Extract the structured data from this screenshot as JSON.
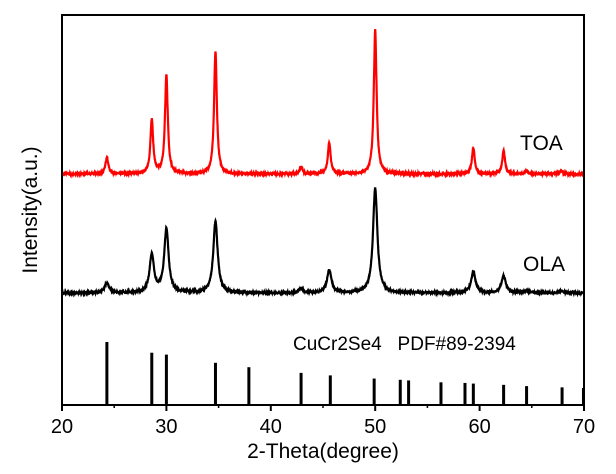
{
  "chart_data": {
    "type": "line",
    "title": "",
    "xlabel": "2-Theta(degree)",
    "ylabel": "Intensity(a.u.)",
    "xlim": [
      20,
      70
    ],
    "ylim": [
      0,
      390
    ],
    "xticks": [
      20,
      30,
      40,
      50,
      60,
      70
    ],
    "grid": false,
    "series": [
      {
        "name": "TOA",
        "color": "#ff0000",
        "baseline": 231,
        "fwhm": 0.32,
        "peaks": [
          [
            24.3,
            17
          ],
          [
            28.6,
            54
          ],
          [
            30.0,
            99
          ],
          [
            34.7,
            122
          ],
          [
            42.9,
            7
          ],
          [
            45.6,
            31
          ],
          [
            50.0,
            144
          ],
          [
            59.4,
            26
          ],
          [
            62.3,
            23
          ],
          [
            64.5,
            3
          ],
          [
            67.8,
            3
          ]
        ]
      },
      {
        "name": "OLA",
        "color": "#000000",
        "baseline": 112,
        "fwhm": 0.5,
        "peaks": [
          [
            24.3,
            10
          ],
          [
            28.6,
            38
          ],
          [
            30.0,
            64
          ],
          [
            34.7,
            72
          ],
          [
            42.9,
            4
          ],
          [
            45.6,
            23
          ],
          [
            50.0,
            105
          ],
          [
            59.4,
            21
          ],
          [
            62.3,
            17
          ],
          [
            64.5,
            2
          ],
          [
            67.8,
            2
          ]
        ]
      }
    ],
    "reference": {
      "label": "CuCr2Se4   PDF#89-2394",
      "positions": [
        24.3,
        28.6,
        30.0,
        34.7,
        37.9,
        42.9,
        45.7,
        49.9,
        52.4,
        53.2,
        56.3,
        58.6,
        59.4,
        62.3,
        64.5,
        67.9,
        69.95
      ],
      "relative_intensity": [
        100,
        83,
        80,
        67,
        60,
        51,
        47,
        42,
        40,
        39,
        36,
        35,
        34,
        32,
        30,
        28,
        27
      ],
      "full_scale": 63
    }
  }
}
